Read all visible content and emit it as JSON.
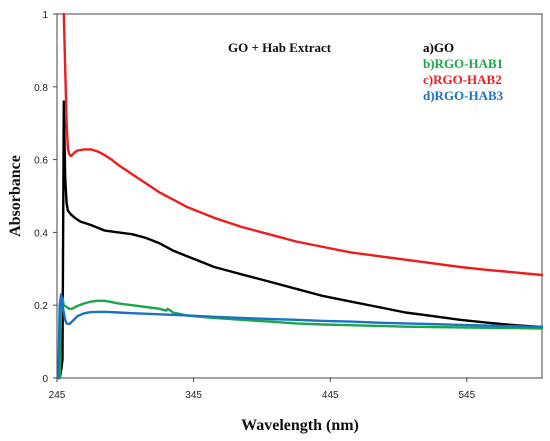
{
  "chart_data": {
    "type": "line",
    "title": "GO + Hab Extract",
    "xlabel": "Wavelength (nm)",
    "ylabel": "Absorbance",
    "xlim": [
      245,
      600
    ],
    "ylim": [
      0,
      1
    ],
    "x_ticks": [
      245,
      345,
      445,
      545
    ],
    "y_ticks": [
      0,
      0.2,
      0.4,
      0.6,
      0.8,
      1
    ],
    "y_tick_labels": [
      "0",
      "0.2",
      "0.4",
      "0.6",
      "0.8",
      "1"
    ],
    "grid": false,
    "legend_position": "top-right",
    "series": [
      {
        "name": "a)GO",
        "color": "#000000",
        "x": [
          246,
          247,
          248,
          249,
          250,
          251,
          252,
          253,
          255,
          258,
          262,
          270,
          280,
          290,
          300,
          310,
          320,
          330,
          340,
          350,
          360,
          370,
          380,
          390,
          400,
          420,
          440,
          460,
          480,
          500,
          520,
          540,
          560,
          580,
          600
        ],
        "y": [
          0.0,
          0.0,
          0.02,
          0.05,
          0.76,
          0.55,
          0.48,
          0.46,
          0.45,
          0.44,
          0.43,
          0.42,
          0.405,
          0.4,
          0.395,
          0.385,
          0.37,
          0.35,
          0.335,
          0.32,
          0.305,
          0.295,
          0.285,
          0.275,
          0.265,
          0.245,
          0.225,
          0.21,
          0.195,
          0.18,
          0.17,
          0.16,
          0.152,
          0.145,
          0.14
        ]
      },
      {
        "name": "b)RGO-HAB1",
        "color": "#1aa64a",
        "x": [
          246,
          247,
          248,
          249,
          250,
          252,
          254,
          256,
          260,
          265,
          270,
          275,
          280,
          290,
          300,
          310,
          320,
          325,
          326,
          330,
          340,
          350,
          360,
          380,
          400,
          420,
          440,
          460,
          480,
          500,
          520,
          540,
          560,
          580,
          600
        ],
        "y": [
          0.0,
          0.0,
          0.2,
          0.22,
          0.2,
          0.195,
          0.19,
          0.19,
          0.198,
          0.205,
          0.21,
          0.212,
          0.212,
          0.205,
          0.2,
          0.195,
          0.19,
          0.185,
          0.19,
          0.18,
          0.172,
          0.168,
          0.165,
          0.16,
          0.155,
          0.15,
          0.147,
          0.145,
          0.143,
          0.141,
          0.14,
          0.139,
          0.138,
          0.137,
          0.136
        ]
      },
      {
        "name": "c)RGO-HAB2",
        "color": "#ee1c1c",
        "x": [
          250,
          251,
          252,
          253,
          254,
          255,
          256,
          258,
          260,
          265,
          270,
          275,
          280,
          285,
          290,
          300,
          310,
          320,
          330,
          340,
          350,
          360,
          380,
          400,
          420,
          440,
          460,
          480,
          500,
          520,
          540,
          560,
          580,
          600
        ],
        "y": [
          1.0,
          0.85,
          0.7,
          0.63,
          0.615,
          0.61,
          0.612,
          0.62,
          0.625,
          0.628,
          0.628,
          0.622,
          0.612,
          0.6,
          0.585,
          0.56,
          0.535,
          0.51,
          0.49,
          0.47,
          0.455,
          0.44,
          0.415,
          0.395,
          0.375,
          0.36,
          0.345,
          0.335,
          0.325,
          0.315,
          0.305,
          0.297,
          0.29,
          0.283
        ]
      },
      {
        "name": "d)RGO-HAB3",
        "color": "#1a73c2",
        "x": [
          246,
          247,
          248,
          249,
          250,
          251,
          252,
          254,
          256,
          260,
          265,
          270,
          280,
          290,
          300,
          320,
          340,
          360,
          380,
          400,
          420,
          440,
          460,
          480,
          500,
          520,
          540,
          560,
          580,
          600
        ],
        "y": [
          0.0,
          0.2,
          0.23,
          0.2,
          0.18,
          0.16,
          0.15,
          0.148,
          0.155,
          0.17,
          0.178,
          0.181,
          0.182,
          0.18,
          0.178,
          0.175,
          0.172,
          0.168,
          0.165,
          0.162,
          0.16,
          0.157,
          0.155,
          0.152,
          0.15,
          0.148,
          0.146,
          0.144,
          0.142,
          0.14
        ]
      }
    ]
  }
}
